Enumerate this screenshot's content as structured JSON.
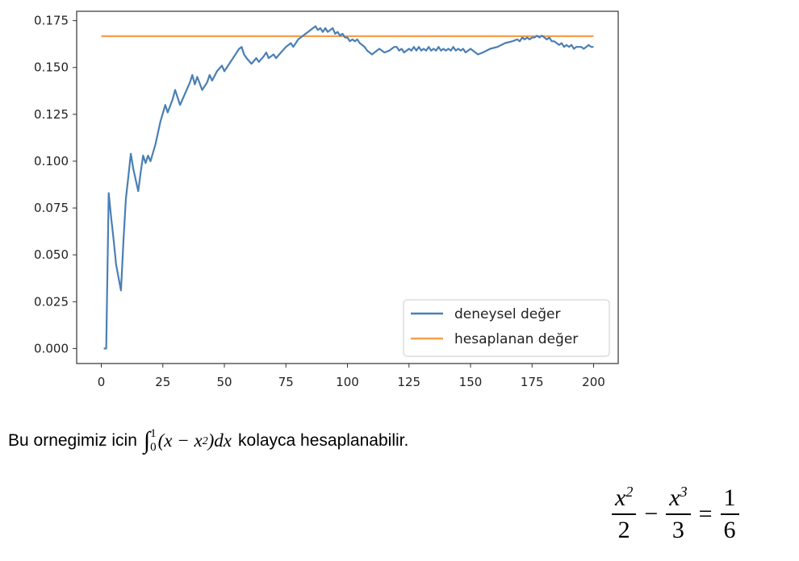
{
  "chart_data": {
    "type": "line",
    "xlim": [
      -10,
      210
    ],
    "ylim": [
      -0.008,
      0.18
    ],
    "xticks": [
      0,
      25,
      50,
      75,
      100,
      125,
      150,
      175,
      200
    ],
    "xtick_labels": [
      "0",
      "25",
      "50",
      "75",
      "100",
      "125",
      "150",
      "175",
      "200"
    ],
    "yticks": [
      0.0,
      0.025,
      0.05,
      0.075,
      0.1,
      0.125,
      0.15,
      0.175
    ],
    "ytick_labels": [
      "0.000",
      "0.025",
      "0.050",
      "0.075",
      "0.100",
      "0.125",
      "0.150",
      "0.175"
    ],
    "grid": false,
    "legend_position": "lower right",
    "series": [
      {
        "name": "deneysel değer",
        "color": "#4a7fb5",
        "points": [
          [
            1,
            0.0
          ],
          [
            2,
            0.0
          ],
          [
            3,
            0.083
          ],
          [
            4,
            0.07
          ],
          [
            5,
            0.058
          ],
          [
            6,
            0.045
          ],
          [
            7,
            0.038
          ],
          [
            8,
            0.031
          ],
          [
            9,
            0.057
          ],
          [
            10,
            0.08
          ],
          [
            11,
            0.092
          ],
          [
            12,
            0.104
          ],
          [
            13,
            0.096
          ],
          [
            14,
            0.09
          ],
          [
            15,
            0.084
          ],
          [
            16,
            0.094
          ],
          [
            17,
            0.103
          ],
          [
            18,
            0.099
          ],
          [
            19,
            0.103
          ],
          [
            20,
            0.1
          ],
          [
            22,
            0.109
          ],
          [
            24,
            0.121
          ],
          [
            26,
            0.13
          ],
          [
            27,
            0.126
          ],
          [
            29,
            0.133
          ],
          [
            30,
            0.138
          ],
          [
            32,
            0.13
          ],
          [
            34,
            0.136
          ],
          [
            36,
            0.142
          ],
          [
            37,
            0.146
          ],
          [
            38,
            0.141
          ],
          [
            39,
            0.145
          ],
          [
            41,
            0.138
          ],
          [
            43,
            0.142
          ],
          [
            44,
            0.146
          ],
          [
            45,
            0.143
          ],
          [
            47,
            0.148
          ],
          [
            49,
            0.151
          ],
          [
            50,
            0.148
          ],
          [
            52,
            0.152
          ],
          [
            54,
            0.156
          ],
          [
            56,
            0.16
          ],
          [
            57,
            0.161
          ],
          [
            58,
            0.157
          ],
          [
            59,
            0.155
          ],
          [
            61,
            0.152
          ],
          [
            63,
            0.155
          ],
          [
            64,
            0.153
          ],
          [
            66,
            0.156
          ],
          [
            67,
            0.158
          ],
          [
            68,
            0.155
          ],
          [
            70,
            0.157
          ],
          [
            71,
            0.155
          ],
          [
            73,
            0.158
          ],
          [
            75,
            0.161
          ],
          [
            77,
            0.163
          ],
          [
            78,
            0.161
          ],
          [
            80,
            0.165
          ],
          [
            82,
            0.167
          ],
          [
            84,
            0.169
          ],
          [
            86,
            0.171
          ],
          [
            87,
            0.172
          ],
          [
            88,
            0.17
          ],
          [
            89,
            0.171
          ],
          [
            90,
            0.169
          ],
          [
            91,
            0.171
          ],
          [
            92,
            0.169
          ],
          [
            93,
            0.17
          ],
          [
            94,
            0.171
          ],
          [
            95,
            0.168
          ],
          [
            96,
            0.169
          ],
          [
            97,
            0.167
          ],
          [
            98,
            0.168
          ],
          [
            99,
            0.166
          ],
          [
            100,
            0.166
          ],
          [
            101,
            0.164
          ],
          [
            102,
            0.165
          ],
          [
            103,
            0.164
          ],
          [
            104,
            0.165
          ],
          [
            105,
            0.163
          ],
          [
            107,
            0.161
          ],
          [
            108,
            0.159
          ],
          [
            110,
            0.157
          ],
          [
            112,
            0.159
          ],
          [
            113,
            0.16
          ],
          [
            115,
            0.158
          ],
          [
            117,
            0.159
          ],
          [
            119,
            0.161
          ],
          [
            120,
            0.161
          ],
          [
            121,
            0.159
          ],
          [
            122,
            0.16
          ],
          [
            123,
            0.158
          ],
          [
            125,
            0.16
          ],
          [
            126,
            0.159
          ],
          [
            127,
            0.161
          ],
          [
            128,
            0.159
          ],
          [
            129,
            0.161
          ],
          [
            130,
            0.159
          ],
          [
            131,
            0.16
          ],
          [
            132,
            0.159
          ],
          [
            133,
            0.161
          ],
          [
            134,
            0.159
          ],
          [
            135,
            0.16
          ],
          [
            136,
            0.159
          ],
          [
            137,
            0.161
          ],
          [
            138,
            0.159
          ],
          [
            139,
            0.16
          ],
          [
            140,
            0.159
          ],
          [
            141,
            0.16
          ],
          [
            142,
            0.159
          ],
          [
            143,
            0.161
          ],
          [
            144,
            0.159
          ],
          [
            145,
            0.16
          ],
          [
            146,
            0.159
          ],
          [
            147,
            0.16
          ],
          [
            148,
            0.158
          ],
          [
            150,
            0.16
          ],
          [
            151,
            0.159
          ],
          [
            153,
            0.157
          ],
          [
            155,
            0.158
          ],
          [
            158,
            0.16
          ],
          [
            161,
            0.161
          ],
          [
            164,
            0.163
          ],
          [
            167,
            0.164
          ],
          [
            169,
            0.165
          ],
          [
            170,
            0.164
          ],
          [
            171,
            0.166
          ],
          [
            172,
            0.165
          ],
          [
            173,
            0.166
          ],
          [
            174,
            0.165
          ],
          [
            175,
            0.166
          ],
          [
            176,
            0.166
          ],
          [
            177,
            0.167
          ],
          [
            178,
            0.166
          ],
          [
            179,
            0.167
          ],
          [
            180,
            0.166
          ],
          [
            181,
            0.165
          ],
          [
            182,
            0.166
          ],
          [
            183,
            0.164
          ],
          [
            184,
            0.164
          ],
          [
            185,
            0.163
          ],
          [
            186,
            0.162
          ],
          [
            187,
            0.163
          ],
          [
            188,
            0.161
          ],
          [
            189,
            0.162
          ],
          [
            190,
            0.161
          ],
          [
            191,
            0.162
          ],
          [
            192,
            0.16
          ],
          [
            193,
            0.161
          ],
          [
            194,
            0.161
          ],
          [
            195,
            0.161
          ],
          [
            196,
            0.16
          ],
          [
            197,
            0.161
          ],
          [
            198,
            0.162
          ],
          [
            199,
            0.161
          ],
          [
            200,
            0.161
          ]
        ]
      },
      {
        "name": "hesaplanan değer",
        "color": "#f5a04e",
        "points": [
          [
            0,
            0.1667
          ],
          [
            200,
            0.1667
          ]
        ]
      }
    ]
  },
  "text": {
    "prefix": "Bu ornegimiz icin",
    "integral_upper": "1",
    "integral_lower": "0",
    "integrand": "(x − x",
    "integrand_exp": "2",
    "integrand_tail": ")dx",
    "suffix": "kolayca hesaplanabilir."
  },
  "formula": {
    "term1_num_base": "x",
    "term1_num_exp": "2",
    "term1_den": "2",
    "minus": "−",
    "term2_num_base": "x",
    "term2_num_exp": "3",
    "term2_den": "3",
    "equals": "=",
    "result_num": "1",
    "result_den": "6"
  }
}
